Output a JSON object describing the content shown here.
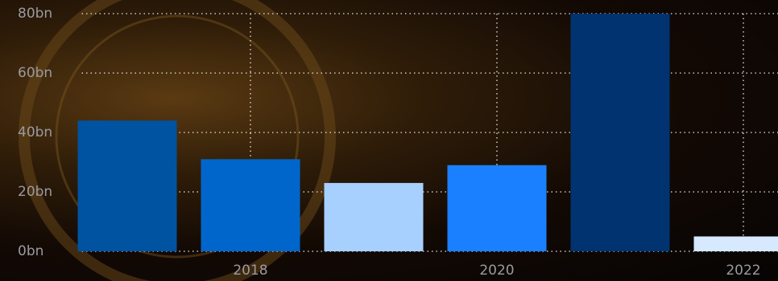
{
  "chart_data": {
    "type": "bar",
    "categories": [
      null,
      "2018",
      null,
      "2020",
      null,
      "2022"
    ],
    "values": [
      44,
      31,
      23,
      29,
      80,
      5
    ],
    "colors": [
      "#0053a0",
      "#0066cc",
      "#a8d0ff",
      "#1a80ff",
      "#003370",
      "#d6e9ff"
    ],
    "ylim": [
      0,
      80
    ],
    "yticks": [
      {
        "value": 0,
        "label": "0bn"
      },
      {
        "value": 20,
        "label": "20bn"
      },
      {
        "value": 40,
        "label": "40bn"
      },
      {
        "value": 60,
        "label": "60bn"
      },
      {
        "value": 80,
        "label": "80bn"
      }
    ],
    "grid": true
  }
}
